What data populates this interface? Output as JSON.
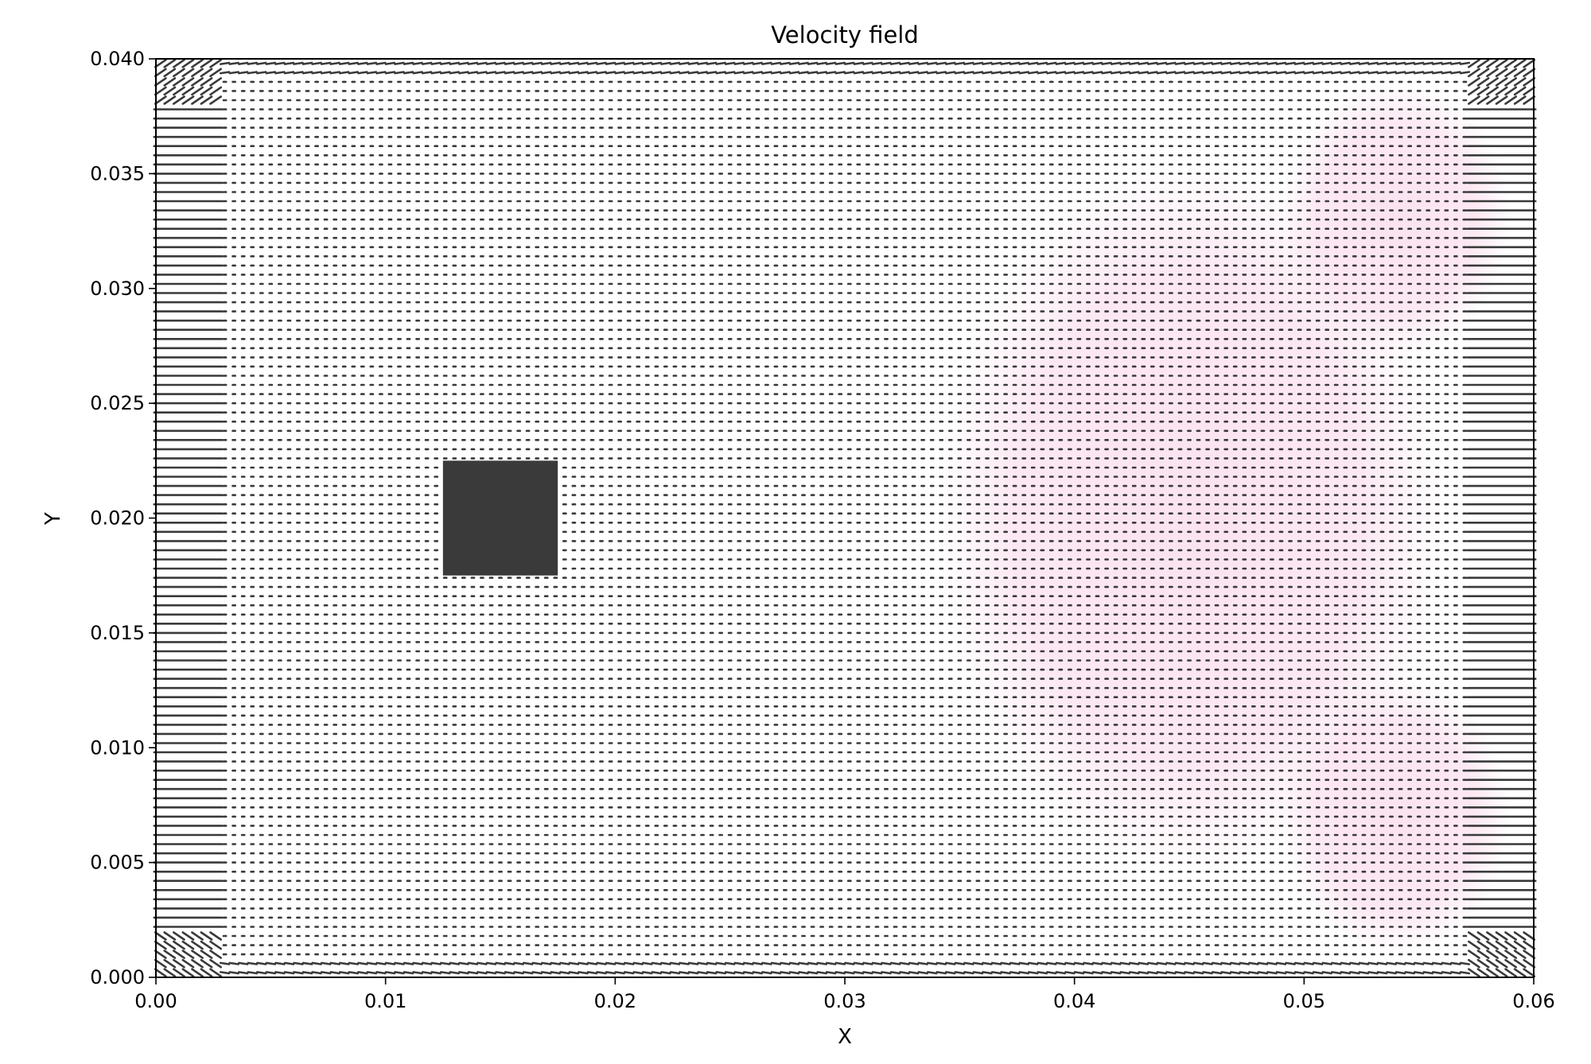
{
  "chart_data": {
    "type": "quiver",
    "title": "Velocity field",
    "xlabel": "X",
    "ylabel": "Y",
    "xlim": [
      0.0,
      0.06
    ],
    "ylim": [
      0.0,
      0.04
    ],
    "xticks": [
      "0.00",
      "0.01",
      "0.02",
      "0.03",
      "0.04",
      "0.05",
      "0.06"
    ],
    "yticks": [
      "0.000",
      "0.005",
      "0.010",
      "0.015",
      "0.020",
      "0.025",
      "0.030",
      "0.035",
      "0.040"
    ],
    "grid": false,
    "obstacle": {
      "x": [
        0.0125,
        0.0175
      ],
      "y": [
        0.0175,
        0.0225
      ]
    },
    "arrow_color": "#3a3a3a",
    "background_color": "#ffffff",
    "magnitude_tint_color": "#fbe3f0",
    "tinted_regions": [
      {
        "center": [
          0.045,
          0.02
        ],
        "radius": [
          0.011,
          0.0155
        ]
      },
      {
        "center": [
          0.054,
          0.033
        ],
        "radius": [
          0.005,
          0.006
        ]
      },
      {
        "center": [
          0.054,
          0.007
        ],
        "radius": [
          0.005,
          0.006
        ]
      }
    ],
    "strong_flow_bands": [
      {
        "x": [
          0.0,
          0.0028
        ],
        "direction": "rightward"
      },
      {
        "x": [
          0.0572,
          0.06
        ],
        "direction": "rightward"
      }
    ]
  }
}
